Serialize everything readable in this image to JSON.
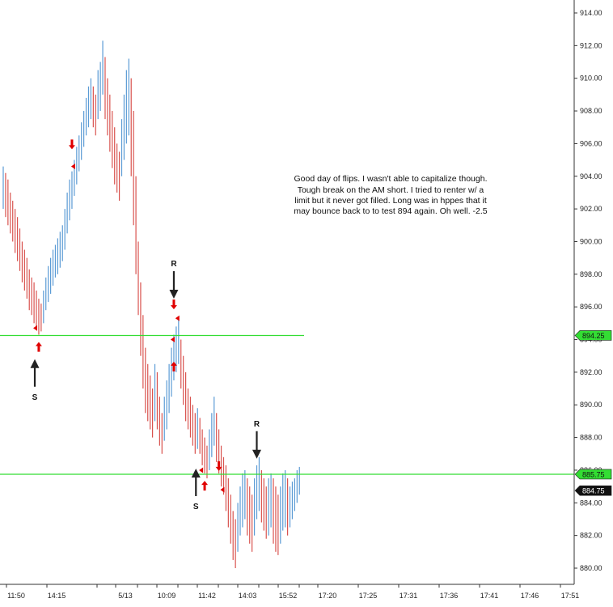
{
  "chart_data": {
    "type": "bar",
    "subtype": "ohlc-range-bars",
    "title": "",
    "xlabel": "",
    "ylabel": "",
    "ylim": [
      879,
      915
    ],
    "y_ticks": [
      "914.00",
      "912.00",
      "910.00",
      "908.00",
      "906.00",
      "904.00",
      "902.00",
      "900.00",
      "898.00",
      "896.00",
      "894.00",
      "892.00",
      "890.00",
      "888.00",
      "886.00",
      "884.00",
      "882.00",
      "880.00"
    ],
    "x_ticks": [
      "11:50",
      "14:15",
      "5/13",
      "10:09",
      "11:42",
      "14:03",
      "15:52",
      "17:20",
      "17:25",
      "17:31",
      "17:36",
      "17:41",
      "17:46",
      "17:51"
    ],
    "grid": false,
    "up_color": "#5b9bd5",
    "down_color": "#d9534f",
    "level_color": "#33dd33",
    "arrow_color": "#e00000",
    "signal_color": "#222222",
    "levels": [
      {
        "price": 894.25,
        "label": "894.25",
        "tag_bg": "#33dd33",
        "tag_fg": "#111111"
      },
      {
        "price": 885.75,
        "label": "885.75",
        "tag_bg": "#33dd33",
        "tag_fg": "#111111"
      }
    ],
    "last_price": {
      "price": 884.75,
      "label": "884.75",
      "tag_bg": "#111111",
      "tag_fg": "#ffffff"
    },
    "bars": [
      [
        904.6,
        902.0
      ],
      [
        904.2,
        901.5
      ],
      [
        903.8,
        901.0
      ],
      [
        903.0,
        900.5
      ],
      [
        902.5,
        900.0
      ],
      [
        902.0,
        899.3
      ],
      [
        901.5,
        898.8
      ],
      [
        900.8,
        898.2
      ],
      [
        900.0,
        897.5
      ],
      [
        899.5,
        897.0
      ],
      [
        899.0,
        896.5
      ],
      [
        898.3,
        895.8
      ],
      [
        897.8,
        895.5
      ],
      [
        897.5,
        895.0
      ],
      [
        897.0,
        894.7
      ],
      [
        896.5,
        894.3
      ],
      [
        896.2,
        894.5
      ],
      [
        897.0,
        895.0
      ],
      [
        897.8,
        895.8
      ],
      [
        898.5,
        896.3
      ],
      [
        899.0,
        896.8
      ],
      [
        899.5,
        897.3
      ],
      [
        899.8,
        897.8
      ],
      [
        900.2,
        898.0
      ],
      [
        900.6,
        898.4
      ],
      [
        901.0,
        898.8
      ],
      [
        902.0,
        899.5
      ],
      [
        903.0,
        900.5
      ],
      [
        903.8,
        901.3
      ],
      [
        904.3,
        902.0
      ],
      [
        905.0,
        902.8
      ],
      [
        905.8,
        903.5
      ],
      [
        906.5,
        904.3
      ],
      [
        907.3,
        905.0
      ],
      [
        908.0,
        905.8
      ],
      [
        908.8,
        906.5
      ],
      [
        909.5,
        907.0
      ],
      [
        910.0,
        907.5
      ],
      [
        909.5,
        907.0
      ],
      [
        909.0,
        906.5
      ],
      [
        910.5,
        907.5
      ],
      [
        911.0,
        908.0
      ],
      [
        912.3,
        909.0
      ],
      [
        911.3,
        907.5
      ],
      [
        910.0,
        906.5
      ],
      [
        909.0,
        905.5
      ],
      [
        908.0,
        904.5
      ],
      [
        907.0,
        903.5
      ],
      [
        906.0,
        903.0
      ],
      [
        905.5,
        902.5
      ],
      [
        907.5,
        904.0
      ],
      [
        909.0,
        905.0
      ],
      [
        910.5,
        906.0
      ],
      [
        911.2,
        906.5
      ],
      [
        910.0,
        904.0
      ],
      [
        908.0,
        901.0
      ],
      [
        904.0,
        898.0
      ],
      [
        900.0,
        895.5
      ],
      [
        897.5,
        893.0
      ],
      [
        895.5,
        891.0
      ],
      [
        893.5,
        889.5
      ],
      [
        892.5,
        889.0
      ],
      [
        891.8,
        888.5
      ],
      [
        891.0,
        888.0
      ],
      [
        892.5,
        889.0
      ],
      [
        892.0,
        888.5
      ],
      [
        890.5,
        887.5
      ],
      [
        889.5,
        887.0
      ],
      [
        890.5,
        887.8
      ],
      [
        891.5,
        888.5
      ],
      [
        892.5,
        889.5
      ],
      [
        893.5,
        890.5
      ],
      [
        894.3,
        891.5
      ],
      [
        894.8,
        892.0
      ],
      [
        895.3,
        892.5
      ],
      [
        894.0,
        891.0
      ],
      [
        893.0,
        890.0
      ],
      [
        892.0,
        889.0
      ],
      [
        891.0,
        888.5
      ],
      [
        890.5,
        888.0
      ],
      [
        890.0,
        887.5
      ],
      [
        889.5,
        887.0
      ],
      [
        889.8,
        887.3
      ],
      [
        889.2,
        887.0
      ],
      [
        888.5,
        886.3
      ],
      [
        888.0,
        885.8
      ],
      [
        887.5,
        885.5
      ],
      [
        888.5,
        886.0
      ],
      [
        889.5,
        886.8
      ],
      [
        890.5,
        887.5
      ],
      [
        889.5,
        886.5
      ],
      [
        888.5,
        885.8
      ],
      [
        887.5,
        885.0
      ],
      [
        886.8,
        884.5
      ],
      [
        886.3,
        883.5
      ],
      [
        885.5,
        882.5
      ],
      [
        884.5,
        881.5
      ],
      [
        883.5,
        880.5
      ],
      [
        883.0,
        880.0
      ],
      [
        884.0,
        881.0
      ],
      [
        885.0,
        882.0
      ],
      [
        885.8,
        882.5
      ],
      [
        886.0,
        883.0
      ],
      [
        885.5,
        882.0
      ],
      [
        885.0,
        881.5
      ],
      [
        884.5,
        881.0
      ],
      [
        885.5,
        882.0
      ],
      [
        886.3,
        883.0
      ],
      [
        886.8,
        883.5
      ],
      [
        886.0,
        882.8
      ],
      [
        885.5,
        882.3
      ],
      [
        885.0,
        881.8
      ],
      [
        885.5,
        882.0
      ],
      [
        885.8,
        882.5
      ],
      [
        885.5,
        881.5
      ],
      [
        885.0,
        881.0
      ],
      [
        884.5,
        880.8
      ],
      [
        885.0,
        881.5
      ],
      [
        885.8,
        882.3
      ],
      [
        886.0,
        882.5
      ],
      [
        885.5,
        882.0
      ],
      [
        885.0,
        882.5
      ],
      [
        885.3,
        883.0
      ],
      [
        885.5,
        883.5
      ],
      [
        886.0,
        884.0
      ],
      [
        886.2,
        884.5
      ]
    ],
    "arrows": [
      {
        "type": "up",
        "bar": 15,
        "price": 893.5
      },
      {
        "type": "left",
        "bar": 14,
        "price": 894.7
      },
      {
        "type": "down",
        "bar": 29,
        "price": 906.0
      },
      {
        "type": "left",
        "bar": 30,
        "price": 904.6
      },
      {
        "type": "down",
        "bar": 72,
        "price": 896.2
      },
      {
        "type": "left",
        "bar": 72,
        "price": 894.0
      },
      {
        "type": "left",
        "bar": 74,
        "price": 895.3
      },
      {
        "type": "up",
        "bar": 72,
        "price": 892.3
      },
      {
        "type": "left",
        "bar": 84,
        "price": 886.0
      },
      {
        "type": "up",
        "bar": 85,
        "price": 885.0
      },
      {
        "type": "down",
        "bar": 91,
        "price": 886.3
      },
      {
        "type": "left",
        "bar": 93,
        "price": 884.8
      }
    ],
    "signals": [
      {
        "label": "S",
        "dir": "up",
        "bar": 14,
        "price": 892.5
      },
      {
        "label": "R",
        "dir": "down",
        "bar": 72,
        "price": 896.8
      },
      {
        "label": "S",
        "dir": "up",
        "bar": 82,
        "price": 885.8
      },
      {
        "label": "R",
        "dir": "down",
        "bar": 107,
        "price": 887.0
      }
    ],
    "annotation": {
      "lines": [
        "Good day of flips. I wasn't able to capitalize though.",
        "Tough break on the AM short. I tried to renter w/ a",
        "limit but it never got filled. Long was in hppes that it",
        "may bounce back to to test 894 again. Oh well. -2.5"
      ]
    }
  }
}
